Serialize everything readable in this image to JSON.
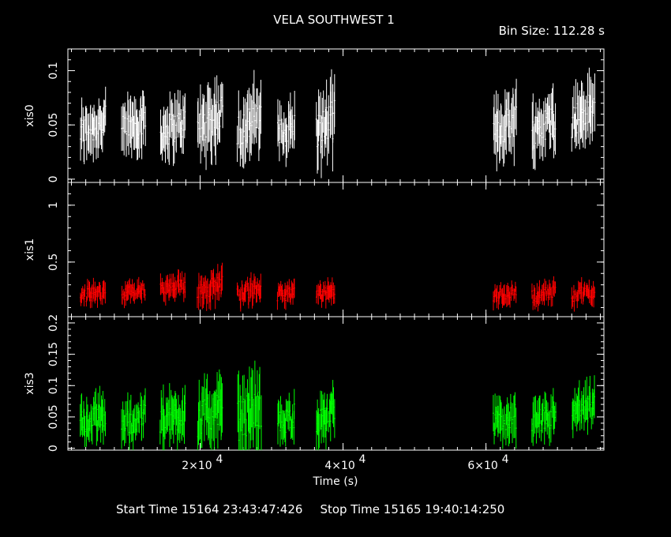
{
  "header": {
    "title": "VELA SOUTHWEST 1",
    "bin_size": "Bin Size: 112.28 s"
  },
  "footer": {
    "start_label": "Start Time 15164 23:43:47:426",
    "stop_label": "Stop Time 15165 19:40:14:250"
  },
  "chart_data": {
    "type": "scatter",
    "xlabel": "Time (s)",
    "x_ticks": [
      {
        "value": 20000,
        "label": "2×10",
        "exp": "4"
      },
      {
        "value": 40000,
        "label": "4×10",
        "exp": "4"
      },
      {
        "value": 60000,
        "label": "6×10",
        "exp": "4"
      }
    ],
    "xlim": [
      1500,
      76500
    ],
    "panels": [
      {
        "name": "xis0",
        "ylabel": "xis0",
        "color": "#ffffff",
        "ylim": [
          -0.003,
          0.12
        ],
        "yticks": [
          {
            "value": 0,
            "label": "0"
          },
          {
            "value": 0.05,
            "label": "0.05"
          },
          {
            "value": 0.1,
            "label": "0.1"
          }
        ],
        "segments": [
          {
            "start": 3200,
            "end": 6800,
            "mean": 0.048,
            "amp": 0.018
          },
          {
            "start": 9000,
            "end": 12400,
            "mean": 0.05,
            "amp": 0.018
          },
          {
            "start": 14400,
            "end": 18000,
            "mean": 0.048,
            "amp": 0.018
          },
          {
            "start": 19600,
            "end": 23200,
            "mean": 0.055,
            "amp": 0.022
          },
          {
            "start": 25200,
            "end": 28600,
            "mean": 0.052,
            "amp": 0.022
          },
          {
            "start": 30800,
            "end": 33300,
            "mean": 0.045,
            "amp": 0.018
          },
          {
            "start": 36200,
            "end": 38900,
            "mean": 0.05,
            "amp": 0.022
          },
          {
            "start": 61000,
            "end": 64200,
            "mean": 0.05,
            "amp": 0.02
          },
          {
            "start": 66400,
            "end": 69800,
            "mean": 0.05,
            "amp": 0.02
          },
          {
            "start": 72000,
            "end": 75200,
            "mean": 0.06,
            "amp": 0.02
          }
        ]
      },
      {
        "name": "xis1",
        "ylabel": "xis1",
        "color": "#ff0000",
        "ylim": [
          0.02,
          1.2
        ],
        "yticks": [
          {
            "value": 0.5,
            "label": "0.5"
          },
          {
            "value": 1,
            "label": "1"
          }
        ],
        "segments": [
          {
            "start": 3200,
            "end": 6800,
            "mean": 0.22,
            "amp": 0.07
          },
          {
            "start": 9000,
            "end": 12400,
            "mean": 0.24,
            "amp": 0.07
          },
          {
            "start": 14400,
            "end": 18000,
            "mean": 0.27,
            "amp": 0.08
          },
          {
            "start": 19600,
            "end": 23200,
            "mean": 0.28,
            "amp": 0.1
          },
          {
            "start": 25200,
            "end": 28600,
            "mean": 0.25,
            "amp": 0.08
          },
          {
            "start": 30800,
            "end": 33300,
            "mean": 0.22,
            "amp": 0.07
          },
          {
            "start": 36200,
            "end": 38900,
            "mean": 0.22,
            "amp": 0.07
          },
          {
            "start": 61000,
            "end": 64200,
            "mean": 0.22,
            "amp": 0.07
          },
          {
            "start": 66400,
            "end": 69800,
            "mean": 0.22,
            "amp": 0.07
          },
          {
            "start": 72000,
            "end": 75200,
            "mean": 0.23,
            "amp": 0.07
          }
        ]
      },
      {
        "name": "xis3",
        "ylabel": "xis3",
        "color": "#00ff00",
        "ylim": [
          -0.003,
          0.21
        ],
        "yticks": [
          {
            "value": 0,
            "label": "0"
          },
          {
            "value": 0.05,
            "label": "0.05"
          },
          {
            "value": 0.1,
            "label": "0.1"
          },
          {
            "value": 0.15,
            "label": "0.15"
          },
          {
            "value": 0.2,
            "label": "0.2"
          }
        ],
        "segments": [
          {
            "start": 3200,
            "end": 6800,
            "mean": 0.045,
            "amp": 0.025
          },
          {
            "start": 9000,
            "end": 12400,
            "mean": 0.045,
            "amp": 0.025
          },
          {
            "start": 14400,
            "end": 18000,
            "mean": 0.05,
            "amp": 0.03
          },
          {
            "start": 19600,
            "end": 23200,
            "mean": 0.055,
            "amp": 0.035
          },
          {
            "start": 25200,
            "end": 28600,
            "mean": 0.055,
            "amp": 0.04
          },
          {
            "start": 30800,
            "end": 33300,
            "mean": 0.045,
            "amp": 0.025
          },
          {
            "start": 36200,
            "end": 38900,
            "mean": 0.05,
            "amp": 0.025
          },
          {
            "start": 61000,
            "end": 64200,
            "mean": 0.045,
            "amp": 0.025
          },
          {
            "start": 66400,
            "end": 69800,
            "mean": 0.045,
            "amp": 0.025
          },
          {
            "start": 72000,
            "end": 75200,
            "mean": 0.06,
            "amp": 0.025
          }
        ]
      }
    ]
  }
}
